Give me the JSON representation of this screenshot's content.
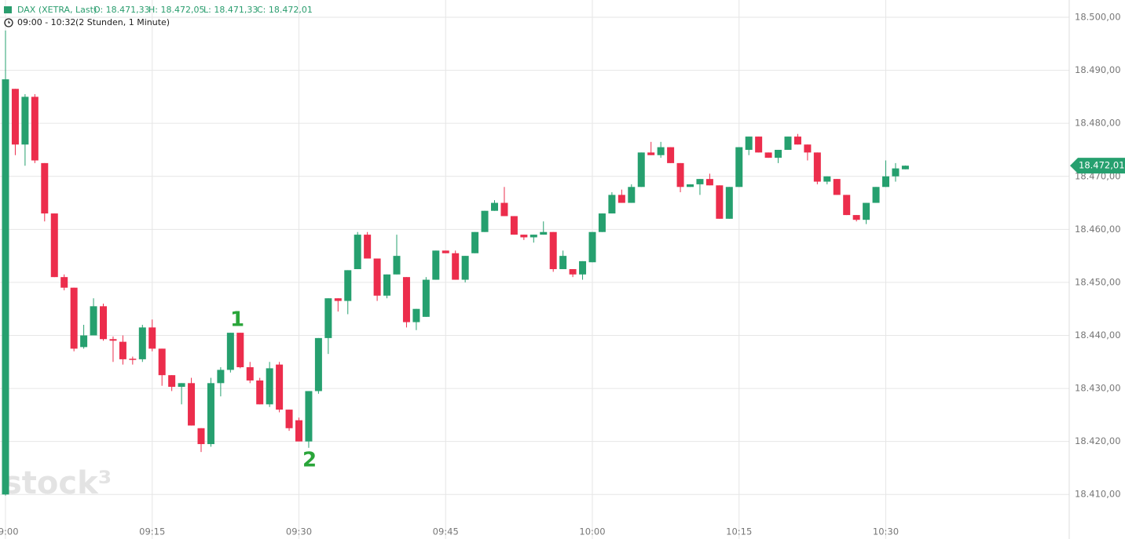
{
  "header": {
    "instrument": "DAX (XETRA, Last)",
    "open": "O: 18.471,33",
    "high": "H: 18.472,05",
    "low": "L: 18.471,33",
    "close": "C: 18.472,01",
    "range": "09:00 - 10:32",
    "period": "(2 Stunden, 1 Minute)"
  },
  "watermark": "stock³",
  "chart_data": {
    "type": "candlestick",
    "categories": [
      "09:00",
      null,
      null,
      null,
      null,
      null,
      null,
      null,
      null,
      null,
      null,
      null,
      null,
      null,
      null,
      "09:15",
      null,
      null,
      null,
      null,
      null,
      null,
      null,
      null,
      null,
      null,
      null,
      null,
      null,
      null,
      "09:30",
      null,
      null,
      null,
      null,
      null,
      null,
      null,
      null,
      null,
      null,
      null,
      null,
      null,
      null,
      "09:45",
      null,
      null,
      null,
      null,
      null,
      null,
      null,
      null,
      null,
      null,
      null,
      null,
      null,
      null,
      "10:00",
      null,
      null,
      null,
      null,
      null,
      null,
      null,
      null,
      null,
      null,
      null,
      null,
      null,
      null,
      "10:15",
      null,
      null,
      null,
      null,
      null,
      null,
      null,
      null,
      null,
      null,
      null,
      null,
      null,
      null,
      "10:30",
      null,
      null
    ],
    "open": [
      18410,
      18486.5,
      18476,
      18485,
      18472.5,
      18463,
      18451,
      18449,
      18437.8,
      18440,
      18445.5,
      18439.3,
      18438.8,
      18435.6,
      18435.5,
      18441.5,
      18437.5,
      18432.5,
      18430.3,
      18431,
      18422.5,
      18419.5,
      18431,
      18433.5,
      18440.5,
      18434,
      18431.5,
      18427,
      18434.5,
      18426,
      18424,
      18420,
      18429.5,
      18439.5,
      18447,
      18446.5,
      18452.5,
      18459,
      18454.5,
      18447.5,
      18451.5,
      18451,
      18442.5,
      18443.5,
      18450.5,
      18456,
      18455.5,
      18450.5,
      18455.5,
      18459.5,
      18463.5,
      18465,
      18462.5,
      18459,
      18458.5,
      18459,
      18459.5,
      18452.5,
      18452.5,
      18451.5,
      18453.8,
      18459.5,
      18463,
      18466.5,
      18465,
      18468,
      18474.5,
      18474,
      18475.5,
      18472.5,
      18468,
      18468.5,
      18469.5,
      18468.3,
      18462,
      18468,
      18475,
      18477.5,
      18474.5,
      18473.5,
      18475,
      18477.5,
      18476,
      18474.5,
      18469,
      18469.5,
      18466.5,
      18462.7,
      18461.8,
      18465,
      18468,
      18470,
      18471.33
    ],
    "high": [
      18497.5,
      18486.5,
      18485.5,
      18485.5,
      18472.5,
      18463,
      18451.5,
      18449,
      18442,
      18447,
      18446,
      18439.8,
      18440,
      18436,
      18442,
      18443,
      18437.5,
      18432.5,
      18431,
      18432,
      18422.5,
      18432,
      18434,
      18440.5,
      18440.5,
      18435,
      18432,
      18435,
      18435,
      18426,
      18424.5,
      18429.5,
      18439.5,
      18447,
      18447,
      18452.3,
      18459.5,
      18459.5,
      18454.5,
      18451.5,
      18459,
      18451,
      18445,
      18451,
      18456,
      18456,
      18456,
      18455,
      18459.5,
      18463.5,
      18465.5,
      18468,
      18462.5,
      18459,
      18459,
      18461.5,
      18459.5,
      18456,
      18452.5,
      18454,
      18459.5,
      18463,
      18467,
      18467.5,
      18468.5,
      18474.5,
      18476.5,
      18476.5,
      18475.5,
      18472.5,
      18468.5,
      18469.5,
      18470.5,
      18468.3,
      18468,
      18475.5,
      18477.5,
      18477.5,
      18474.5,
      18475,
      18477.5,
      18478,
      18476,
      18474.5,
      18470,
      18469.5,
      18466.5,
      18462.7,
      18465,
      18468,
      18473,
      18472.5,
      18472.05
    ],
    "low": [
      18409.8,
      18474,
      18472,
      18472.5,
      18461.5,
      18451,
      18448.5,
      18437,
      18437.5,
      18440,
      18439,
      18435,
      18434.5,
      18434.5,
      18435,
      18437,
      18430.5,
      18429.5,
      18427,
      18423,
      18418,
      18419,
      18428.5,
      18433,
      18433.8,
      18431,
      18427,
      18426.5,
      18425.5,
      18422,
      18420,
      18418.8,
      18429,
      18436.5,
      18444.5,
      18444,
      18452.5,
      18454.5,
      18446.5,
      18447,
      18451.5,
      18441.5,
      18441,
      18443.5,
      18450.5,
      18455.5,
      18450.5,
      18450,
      18455.5,
      18459.5,
      18463.5,
      18462.5,
      18459,
      18458,
      18457.5,
      18459,
      18452,
      18452.5,
      18451,
      18450.5,
      18453.8,
      18459.5,
      18463,
      18465,
      18465,
      18468,
      18474,
      18473.5,
      18472.5,
      18467,
      18468,
      18466.5,
      18468.3,
      18462,
      18462,
      18468,
      18474,
      18474.5,
      18473.5,
      18472.5,
      18475,
      18476,
      18473,
      18468.5,
      18468.5,
      18466.5,
      18462.7,
      18461.5,
      18461,
      18465,
      18468,
      18469,
      18471.33
    ],
    "close": [
      18488.3,
      18476,
      18485,
      18473,
      18463,
      18451,
      18449,
      18437.5,
      18440,
      18445.5,
      18439.3,
      18439,
      18435.5,
      18435.4,
      18441.5,
      18437.5,
      18432.5,
      18430.3,
      18431,
      18423,
      18419.5,
      18431,
      18433.5,
      18440.5,
      18434,
      18431.5,
      18427,
      18433.8,
      18426,
      18422.5,
      18420,
      18429.5,
      18439.5,
      18447,
      18446.5,
      18452.3,
      18459,
      18454.5,
      18447.5,
      18451.5,
      18455,
      18442.5,
      18445,
      18450.5,
      18456,
      18455.5,
      18450.5,
      18455,
      18459.5,
      18463.5,
      18465,
      18462.5,
      18459,
      18458.5,
      18459,
      18459.5,
      18452.5,
      18455,
      18451.5,
      18454,
      18459.5,
      18463,
      18466.5,
      18465,
      18468,
      18474.5,
      18474,
      18475.5,
      18472.5,
      18468,
      18468.5,
      18469.5,
      18468.3,
      18462,
      18468,
      18475.5,
      18477.5,
      18474.5,
      18473.5,
      18475,
      18477.5,
      18476,
      18474.5,
      18469,
      18470,
      18466.5,
      18462.7,
      18461.8,
      18465,
      18468,
      18470,
      18471.5,
      18472.01
    ],
    "up_color": "#26a06f",
    "down_color": "#ec2d4c",
    "ylim": [
      18401.6,
      18503.26
    ],
    "yticks": [
      {
        "value": 18410,
        "label": "18.410,00"
      },
      {
        "value": 18420,
        "label": "18.420,00"
      },
      {
        "value": 18430,
        "label": "18.430,00"
      },
      {
        "value": 18440,
        "label": "18.440,00"
      },
      {
        "value": 18450,
        "label": "18.450,00"
      },
      {
        "value": 18460,
        "label": "18.460,00"
      },
      {
        "value": 18470,
        "label": "18.470,00"
      },
      {
        "value": 18480,
        "label": "18.480,00"
      },
      {
        "value": 18490,
        "label": "18.490,00"
      },
      {
        "value": 18500,
        "label": "18.500,00"
      }
    ],
    "grid": true,
    "last_price": {
      "value": 18472.01,
      "label": "18.472,01"
    },
    "annotations": [
      "1",
      "2"
    ]
  }
}
